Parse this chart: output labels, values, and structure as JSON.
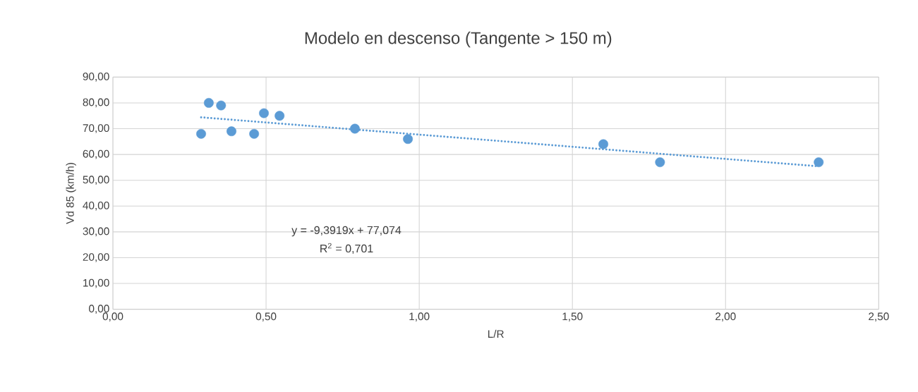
{
  "chart_data": {
    "type": "scatter",
    "title": "Modelo en descenso (Tangente > 150 m)",
    "xlabel": "L/R",
    "ylabel": "Vd 85 (km/h)",
    "series": [
      {
        "color": "#5b9bd5",
        "marker": "circle",
        "x": [
          0.288,
          0.313,
          0.353,
          0.387,
          0.461,
          0.493,
          0.544,
          0.79,
          0.963,
          1.601,
          1.786,
          2.304
        ],
        "values": [
          68,
          80,
          79,
          69,
          68,
          76,
          75,
          70,
          66,
          64,
          57,
          57
        ]
      },
      {
        "type": "line",
        "color": "#5b9bd5",
        "marker": "none",
        "line_style": "dotted",
        "x": [
          0.288,
          2.304
        ],
        "values": [
          74.4,
          55.4
        ]
      }
    ],
    "annotations": [
      "y = -9,3919x + 77,074",
      "R$^{2}$ = 0,701"
    ],
    "xlim": [
      0,
      2.5
    ],
    "ylim": [
      0,
      90
    ],
    "xticks": [
      {
        "value": 0,
        "label": "0,00"
      },
      {
        "value": 0.5,
        "label": "0,50"
      },
      {
        "value": 1,
        "label": "1,00"
      },
      {
        "value": 1.5,
        "label": "1,50"
      },
      {
        "value": 2,
        "label": "2,00"
      },
      {
        "value": 2.5,
        "label": "2,50"
      }
    ],
    "yticks": [
      {
        "value": 0,
        "label": "0,00"
      },
      {
        "value": 10,
        "label": "10,00"
      },
      {
        "value": 20,
        "label": "20,00"
      },
      {
        "value": 30,
        "label": "30,00"
      },
      {
        "value": 40,
        "label": "40,00"
      },
      {
        "value": 50,
        "label": "50,00"
      },
      {
        "value": 60,
        "label": "60,00"
      },
      {
        "value": 70,
        "label": "70,00"
      },
      {
        "value": 80,
        "label": "80,00"
      },
      {
        "value": 90,
        "label": "90,00"
      }
    ],
    "grid": true
  }
}
